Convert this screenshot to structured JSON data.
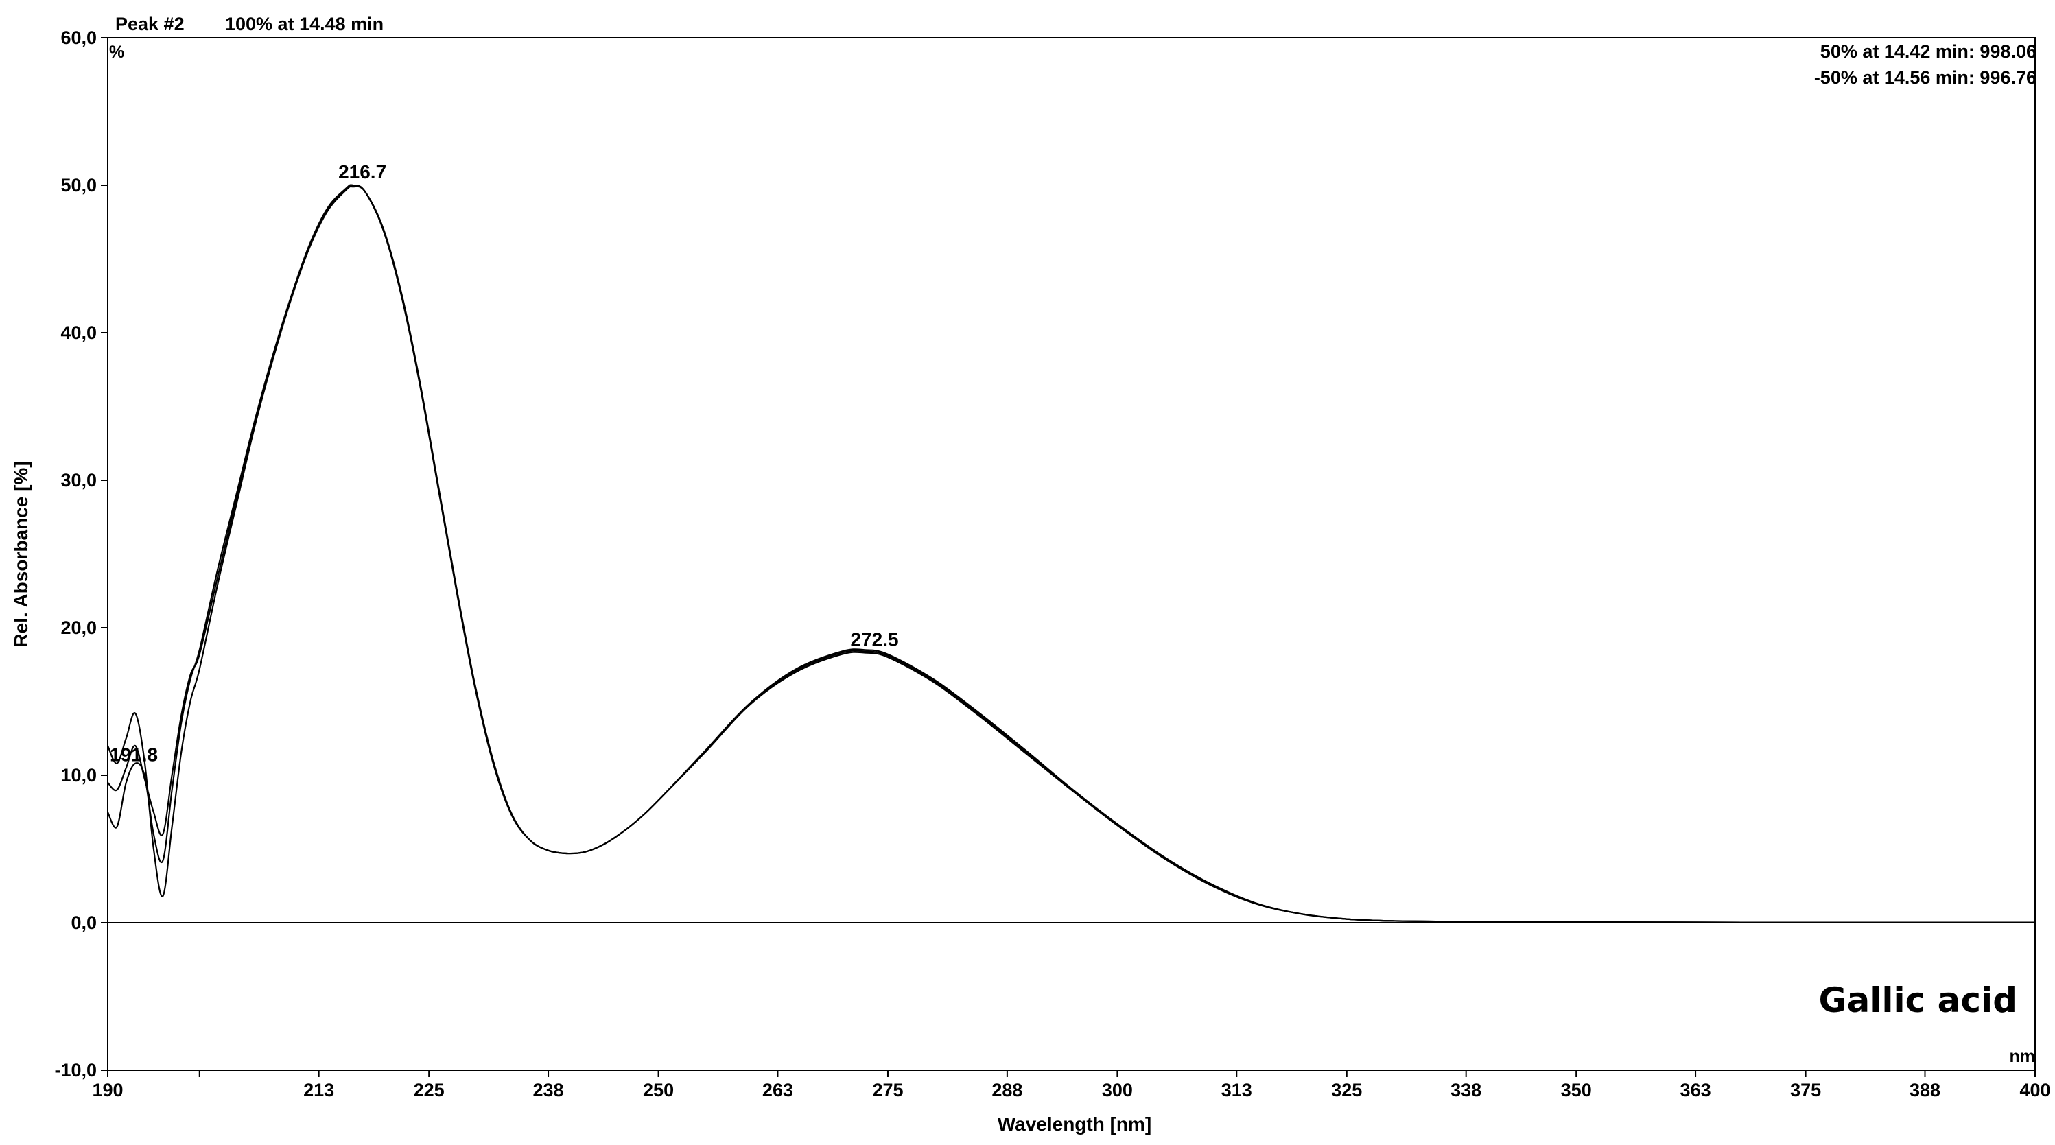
{
  "chart_data": {
    "type": "line",
    "header": {
      "peak": "Peak #2",
      "apex": "100% at 14.48 min",
      "match_lines": [
        "50% at 14.42 min:  998.06",
        "-50% at 14.56 min:  996.76"
      ]
    },
    "compound": "Gallic acid",
    "xlabel": "Wavelength [nm]",
    "ylabel": "Rel. Absorbance [%]",
    "x_unit": "nm",
    "y_unit": "%",
    "xlim": [
      190,
      400
    ],
    "ylim": [
      -10,
      60
    ],
    "x_ticks": [
      190,
      213,
      225,
      238,
      250,
      263,
      275,
      288,
      300,
      313,
      325,
      338,
      350,
      363,
      375,
      388,
      400
    ],
    "x_tick_labels": [
      "190",
      "213",
      "225",
      "238",
      "250",
      "263",
      "275",
      "288",
      "300",
      "313",
      "325",
      "338",
      "350",
      "363",
      "375",
      "388",
      "400"
    ],
    "x_unlabeled_ticks": [
      200
    ],
    "y_ticks": [
      -10,
      0,
      10,
      20,
      30,
      40,
      50,
      60
    ],
    "y_tick_labels": [
      "-10,0",
      "0,0",
      "10,0",
      "20,0",
      "30,0",
      "40,0",
      "50,0",
      "60,0"
    ],
    "grid": false,
    "line_color": "#000000",
    "peak_labels": [
      {
        "text": "191.8",
        "x": 191.8,
        "y": 10.5
      },
      {
        "text": "216.7",
        "x": 216.7,
        "y": 50.0
      },
      {
        "text": "272.5",
        "x": 272.5,
        "y": 18.3
      }
    ],
    "series": [
      {
        "x": [
          190,
          191,
          192,
          193,
          194,
          195,
          196,
          197,
          198,
          199,
          200,
          202,
          204,
          206,
          208,
          210,
          212,
          214,
          216,
          216.7,
          218,
          220,
          222,
          224,
          226,
          228,
          230,
          232,
          234,
          236,
          238,
          240,
          242,
          244,
          246,
          248,
          250,
          255,
          260,
          265,
          270,
          272.5,
          275,
          280,
          285,
          290,
          295,
          300,
          305,
          310,
          315,
          320,
          325,
          330,
          340,
          350,
          360,
          370,
          380,
          390,
          400
        ],
        "y": [
          7.5,
          6.5,
          9.5,
          10.8,
          10.0,
          6.0,
          4.2,
          9.0,
          13.5,
          16.5,
          18.5,
          24.0,
          29.0,
          34.0,
          38.5,
          42.5,
          46.0,
          48.5,
          49.8,
          50.0,
          49.6,
          47.0,
          42.5,
          36.5,
          29.5,
          22.5,
          16.0,
          10.8,
          7.3,
          5.6,
          4.9,
          4.7,
          4.8,
          5.3,
          6.1,
          7.1,
          8.3,
          11.5,
          14.8,
          17.0,
          18.2,
          18.3,
          18.0,
          16.3,
          14.0,
          11.5,
          9.0,
          6.6,
          4.4,
          2.6,
          1.3,
          0.6,
          0.25,
          0.12,
          0.06,
          0.04,
          0.03,
          0.02,
          0.02,
          0.02,
          0.02
        ]
      },
      {
        "x": [
          190,
          191,
          192,
          193,
          194,
          195,
          196,
          197,
          198,
          199,
          200,
          202,
          204,
          206,
          208,
          210,
          212,
          214,
          216,
          216.7,
          218,
          220,
          222,
          224,
          226,
          228,
          230,
          232,
          234,
          236,
          238,
          240,
          242,
          244,
          246,
          248,
          250,
          255,
          260,
          265,
          270,
          272.5,
          275,
          280,
          285,
          290,
          295,
          300,
          305,
          310,
          315,
          320,
          325,
          330,
          340,
          350,
          360,
          370,
          380,
          390,
          400
        ],
        "y": [
          12.0,
          10.8,
          12.5,
          14.2,
          11.0,
          5.0,
          1.8,
          6.5,
          11.5,
          15.0,
          17.2,
          23.0,
          28.3,
          33.6,
          38.2,
          42.3,
          45.8,
          48.3,
          49.7,
          49.9,
          49.6,
          47.1,
          42.7,
          36.7,
          29.7,
          22.7,
          16.2,
          11.0,
          7.4,
          5.6,
          4.9,
          4.7,
          4.8,
          5.3,
          6.1,
          7.1,
          8.3,
          11.6,
          14.9,
          17.2,
          18.4,
          18.5,
          18.2,
          16.5,
          14.2,
          11.7,
          9.1,
          6.7,
          4.5,
          2.7,
          1.35,
          0.6,
          0.25,
          0.12,
          0.06,
          0.04,
          0.03,
          0.02,
          0.02,
          0.02,
          0.02
        ]
      },
      {
        "x": [
          190,
          191,
          192,
          193,
          194,
          195,
          196,
          197,
          198,
          199,
          200,
          202,
          204,
          206,
          208,
          210,
          212,
          214,
          216,
          216.7,
          218,
          220,
          222,
          224,
          226,
          228,
          230,
          232,
          234,
          236,
          238,
          240,
          242,
          244,
          246,
          248,
          250,
          255,
          260,
          265,
          270,
          272.5,
          275,
          280,
          285,
          290,
          295,
          300,
          305,
          310,
          315,
          320,
          325,
          330,
          340,
          350,
          360,
          370,
          380,
          390,
          400
        ],
        "y": [
          9.5,
          9.0,
          10.5,
          12.0,
          9.8,
          7.5,
          6.0,
          10.0,
          14.0,
          16.8,
          18.2,
          23.5,
          28.7,
          33.8,
          38.3,
          42.4,
          45.9,
          48.4,
          49.8,
          50.0,
          49.6,
          47.0,
          42.6,
          36.6,
          29.6,
          22.6,
          16.1,
          10.9,
          7.35,
          5.6,
          4.9,
          4.7,
          4.8,
          5.3,
          6.1,
          7.1,
          8.3,
          11.55,
          14.85,
          17.1,
          18.3,
          18.4,
          18.1,
          16.4,
          14.1,
          11.6,
          9.05,
          6.65,
          4.45,
          2.65,
          1.32,
          0.6,
          0.25,
          0.12,
          0.06,
          0.04,
          0.03,
          0.02,
          0.02,
          0.02,
          0.02
        ]
      }
    ]
  }
}
